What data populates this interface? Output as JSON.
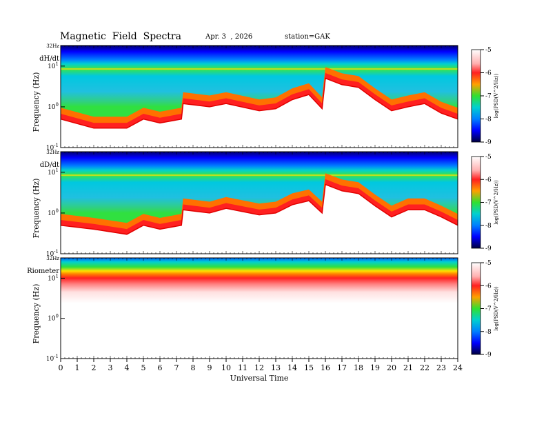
{
  "header": {
    "title": "Magnetic  Field  Spectra",
    "date": "Apr. 3  , 2026",
    "station": "station=GAK"
  },
  "colorbar": {
    "label": "log(PSD(V^2/Hz))",
    "ticks": [
      "-5",
      "-6",
      "-7",
      "-8",
      "-9"
    ],
    "values": [
      -5,
      -6,
      -7,
      -8,
      -9
    ],
    "stops": [
      {
        "v": -5.0,
        "color": "#ffffff"
      },
      {
        "v": -5.6,
        "color": "#ffb0b0"
      },
      {
        "v": -6.0,
        "color": "#ff2020"
      },
      {
        "v": -6.5,
        "color": "#ffa000"
      },
      {
        "v": -7.0,
        "color": "#30e030"
      },
      {
        "v": -7.5,
        "color": "#00d0d0"
      },
      {
        "v": -8.0,
        "color": "#0080ff"
      },
      {
        "v": -8.5,
        "color": "#0000ff"
      },
      {
        "v": -9.0,
        "color": "#000040"
      }
    ]
  },
  "chart_data": [
    {
      "type": "heatmap",
      "panel_label": "dH/dt",
      "ylabel": "Frequency (Hz)",
      "ytop_label": "32Hz",
      "yticks": [
        {
          "base": "10",
          "exp": "1",
          "value": 10
        },
        {
          "base": "10",
          "exp": "0",
          "value": 1
        },
        {
          "base": "10",
          "exp": "-1",
          "value": 0.1
        }
      ],
      "ylim": [
        0.1,
        32
      ],
      "yscale": "log",
      "xlim": [
        0,
        24
      ],
      "zlim": [
        -9,
        -5
      ],
      "peak_frequency_hz": {
        "x": [
          0,
          2,
          4,
          5,
          6,
          7.3,
          7.4,
          9,
          10,
          12,
          13,
          14,
          15,
          15.8,
          16,
          17,
          18,
          19,
          20,
          21,
          22,
          23,
          24
        ],
        "y": [
          0.5,
          0.3,
          0.3,
          0.5,
          0.4,
          0.5,
          1.2,
          1.0,
          1.2,
          0.8,
          0.9,
          1.5,
          2.0,
          0.9,
          5.0,
          3.5,
          3.0,
          1.5,
          0.8,
          1.0,
          1.2,
          0.7,
          0.5
        ]
      }
    },
    {
      "type": "heatmap",
      "panel_label": "dD/dt",
      "ylabel": "Frequency (Hz)",
      "ytop_label": "32Hz",
      "yticks": [
        {
          "base": "10",
          "exp": "1",
          "value": 10
        },
        {
          "base": "10",
          "exp": "0",
          "value": 1
        },
        {
          "base": "10",
          "exp": "-1",
          "value": 0.1
        }
      ],
      "ylim": [
        0.1,
        32
      ],
      "yscale": "log",
      "xlim": [
        0,
        24
      ],
      "zlim": [
        -9,
        -5
      ],
      "peak_frequency_hz": {
        "x": [
          0,
          2,
          4,
          5,
          6,
          7.3,
          7.4,
          9,
          10,
          12,
          13,
          14,
          15,
          15.8,
          16,
          17,
          18,
          19,
          20,
          21,
          22,
          23,
          24
        ],
        "y": [
          0.5,
          0.4,
          0.3,
          0.5,
          0.4,
          0.5,
          1.2,
          1.0,
          1.3,
          0.9,
          1.0,
          1.6,
          2.0,
          1.0,
          5.0,
          3.5,
          3.0,
          1.5,
          0.8,
          1.2,
          1.2,
          0.8,
          0.5
        ]
      }
    },
    {
      "type": "heatmap",
      "panel_label": "Riometer",
      "ylabel": "Frequency (Hz)",
      "ytop_label": "32Hz",
      "yticks": [
        {
          "base": "10",
          "exp": "1",
          "value": 10
        },
        {
          "base": "10",
          "exp": "0",
          "value": 1
        },
        {
          "base": "10",
          "exp": "-1",
          "value": 0.1
        }
      ],
      "ylim": [
        0.1,
        32
      ],
      "yscale": "log",
      "xlim": [
        0,
        24
      ],
      "zlim": [
        -9,
        -5
      ]
    }
  ],
  "xaxis": {
    "label": "Universal Time",
    "ticks": [
      "0",
      "1",
      "2",
      "3",
      "4",
      "5",
      "6",
      "7",
      "8",
      "9",
      "10",
      "11",
      "12",
      "13",
      "14",
      "15",
      "16",
      "17",
      "18",
      "19",
      "20",
      "21",
      "22",
      "23",
      "24"
    ]
  }
}
